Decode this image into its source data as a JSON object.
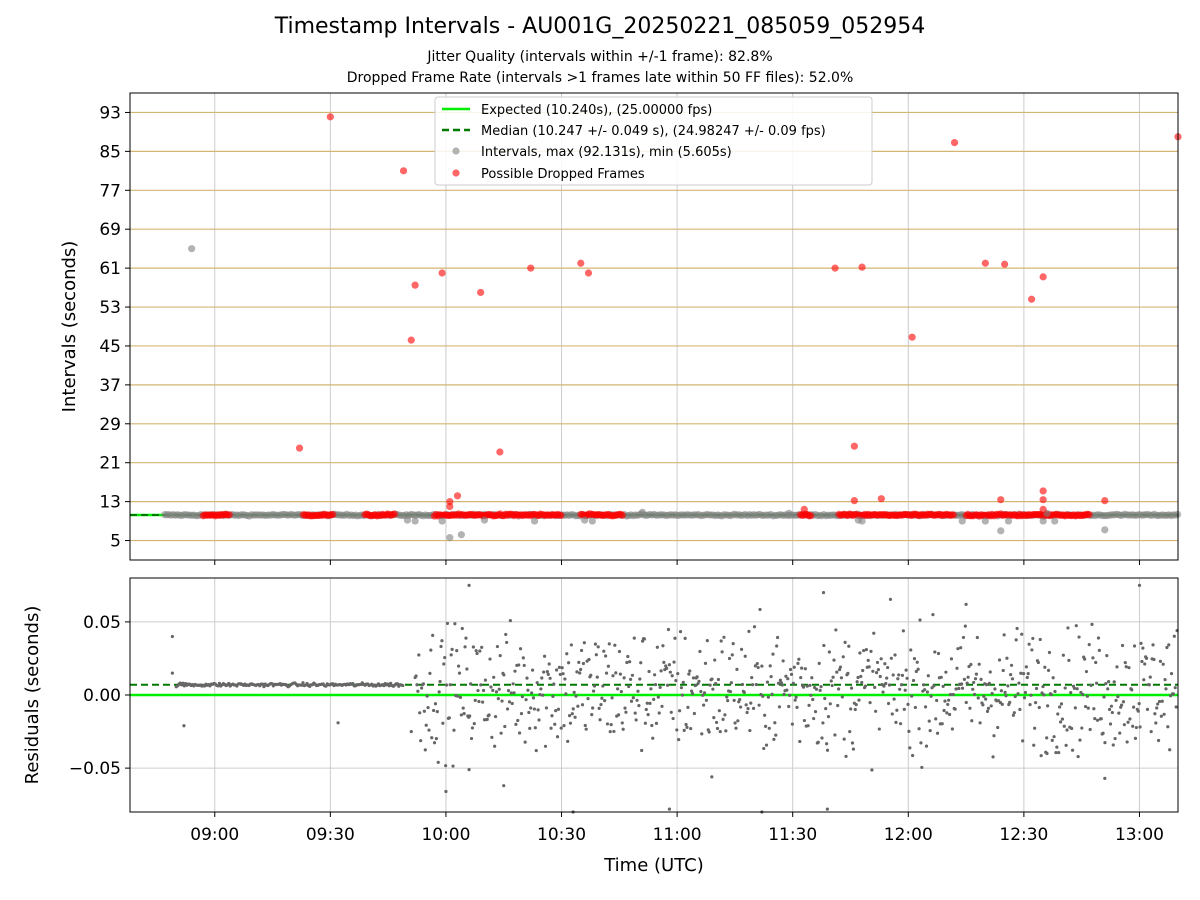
{
  "chart_data": {
    "type": "scatter",
    "title": "Timestamp Intervals - AU001G_20250221_085059_052954",
    "subtitles": [
      "Jitter Quality (intervals within +/-1 frame): 82.8%",
      "Dropped Frame Rate (intervals >1 frames late within 50 FF files): 52.0%"
    ],
    "xlabel": "Time (UTC)",
    "x_ticks": [
      "09:00",
      "09:30",
      "10:00",
      "10:30",
      "11:00",
      "11:30",
      "12:00",
      "12:30",
      "13:00"
    ],
    "xlim": [
      "08:38",
      "13:10"
    ],
    "grid": true,
    "top_panel": {
      "ylabel": "Intervals (seconds)",
      "ylim": [
        1,
        97
      ],
      "y_ticks": [
        5,
        13,
        21,
        29,
        37,
        45,
        53,
        61,
        69,
        77,
        85,
        93
      ],
      "legend_position": "upper center",
      "legend": [
        "Expected (10.240s), (25.00000 fps)",
        "Median (10.247 +/- 0.049 s), (24.98247 +/- 0.09 fps)",
        "Intervals, max (92.131s), min (5.605s)",
        "Possible Dropped Frames"
      ],
      "expected_line": 10.24,
      "median_line": 10.247,
      "series": [
        {
          "name": "Intervals, max (92.131s), min (5.605s)",
          "color": "#808080",
          "points": [
            {
              "x": "08:54",
              "y": 65.0
            },
            {
              "x": "09:50",
              "y": 9.2
            },
            {
              "x": "09:52",
              "y": 9.0
            },
            {
              "x": "09:59",
              "y": 9.0
            },
            {
              "x": "10:01",
              "y": 5.6
            },
            {
              "x": "10:04",
              "y": 6.2
            },
            {
              "x": "10:10",
              "y": 9.2
            },
            {
              "x": "10:23",
              "y": 9.0
            },
            {
              "x": "10:36",
              "y": 9.2
            },
            {
              "x": "10:38",
              "y": 9.0
            },
            {
              "x": "10:51",
              "y": 10.8
            },
            {
              "x": "11:29",
              "y": 10.6
            },
            {
              "x": "11:47",
              "y": 9.2
            },
            {
              "x": "11:48",
              "y": 9.0
            },
            {
              "x": "12:14",
              "y": 9.0
            },
            {
              "x": "12:20",
              "y": 9.0
            },
            {
              "x": "12:24",
              "y": 7.0
            },
            {
              "x": "12:26",
              "y": 9.0
            },
            {
              "x": "12:35",
              "y": 9.0
            },
            {
              "x": "12:36",
              "y": 10.6
            },
            {
              "x": "12:38",
              "y": 9.0
            },
            {
              "x": "12:51",
              "y": 7.2
            }
          ],
          "baseline_ranges": [
            [
              "08:38",
              "13:10"
            ]
          ],
          "baseline_value": 10.24
        },
        {
          "name": "Possible Dropped Frames",
          "color": "#ff0000",
          "points": [
            {
              "x": "09:22",
              "y": 24.0
            },
            {
              "x": "09:30",
              "y": 92.1
            },
            {
              "x": "09:49",
              "y": 81.0
            },
            {
              "x": "09:51",
              "y": 46.2
            },
            {
              "x": "09:52",
              "y": 57.5
            },
            {
              "x": "09:59",
              "y": 60.0
            },
            {
              "x": "10:01",
              "y": 13.0
            },
            {
              "x": "10:01",
              "y": 12.0
            },
            {
              "x": "10:03",
              "y": 14.2
            },
            {
              "x": "10:09",
              "y": 56.0
            },
            {
              "x": "10:14",
              "y": 23.2
            },
            {
              "x": "10:22",
              "y": 61.0
            },
            {
              "x": "10:35",
              "y": 62.0
            },
            {
              "x": "10:37",
              "y": 60.0
            },
            {
              "x": "11:33",
              "y": 11.4
            },
            {
              "x": "11:41",
              "y": 61.0
            },
            {
              "x": "11:46",
              "y": 24.4
            },
            {
              "x": "11:46",
              "y": 13.2
            },
            {
              "x": "11:48",
              "y": 61.2
            },
            {
              "x": "11:53",
              "y": 13.6
            },
            {
              "x": "12:01",
              "y": 46.8
            },
            {
              "x": "12:12",
              "y": 86.8
            },
            {
              "x": "12:20",
              "y": 62.0
            },
            {
              "x": "12:24",
              "y": 13.4
            },
            {
              "x": "12:25",
              "y": 61.8
            },
            {
              "x": "12:32",
              "y": 54.6
            },
            {
              "x": "12:35",
              "y": 15.2
            },
            {
              "x": "12:35",
              "y": 13.4
            },
            {
              "x": "12:35",
              "y": 11.4
            },
            {
              "x": "12:35",
              "y": 59.2
            },
            {
              "x": "12:51",
              "y": 13.2
            },
            {
              "x": "13:10",
              "y": 88.0
            }
          ],
          "baseline_ranges": [
            [
              "08:57",
              "09:04"
            ],
            [
              "09:23",
              "09:31"
            ],
            [
              "09:39",
              "09:47"
            ],
            [
              "09:57",
              "10:30"
            ],
            [
              "10:35",
              "10:46"
            ],
            [
              "11:32",
              "11:35"
            ],
            [
              "11:42",
              "12:12"
            ],
            [
              "12:15",
              "12:47"
            ]
          ],
          "baseline_value": 10.24
        }
      ]
    },
    "bottom_panel": {
      "ylabel": "Residuals (seconds)",
      "ylim": [
        -0.08,
        0.08
      ],
      "y_ticks": [
        "0.05",
        "0.00",
        "−0.05"
      ],
      "y_tick_values": [
        0.05,
        0.0,
        -0.05
      ],
      "expected_residual": 0.0,
      "median_residual": 0.007,
      "series": [
        {
          "name": "Residuals",
          "color": "#666666",
          "stable_period": {
            "from": "08:50",
            "to": "09:49",
            "value": 0.007
          },
          "noisy_period": {
            "from": "09:52",
            "to": "13:10",
            "spread": 0.03
          },
          "outliers": [
            {
              "x": "08:49",
              "y": 0.04
            },
            {
              "x": "08:49",
              "y": 0.015
            },
            {
              "x": "08:52",
              "y": -0.021
            },
            {
              "x": "09:32",
              "y": -0.019
            },
            {
              "x": "09:51",
              "y": -0.025
            },
            {
              "x": "10:00",
              "y": -0.066
            },
            {
              "x": "10:06",
              "y": 0.075
            },
            {
              "x": "10:06",
              "y": -0.051
            },
            {
              "x": "10:15",
              "y": -0.062
            },
            {
              "x": "10:33",
              "y": -0.08
            },
            {
              "x": "10:58",
              "y": -0.078
            },
            {
              "x": "11:09",
              "y": -0.056
            },
            {
              "x": "11:22",
              "y": -0.08
            },
            {
              "x": "11:38",
              "y": 0.07
            },
            {
              "x": "11:39",
              "y": -0.078
            },
            {
              "x": "12:15",
              "y": 0.062
            },
            {
              "x": "12:36",
              "y": -0.04
            },
            {
              "x": "12:51",
              "y": -0.057
            },
            {
              "x": "13:00",
              "y": 0.075
            }
          ]
        }
      ]
    }
  }
}
